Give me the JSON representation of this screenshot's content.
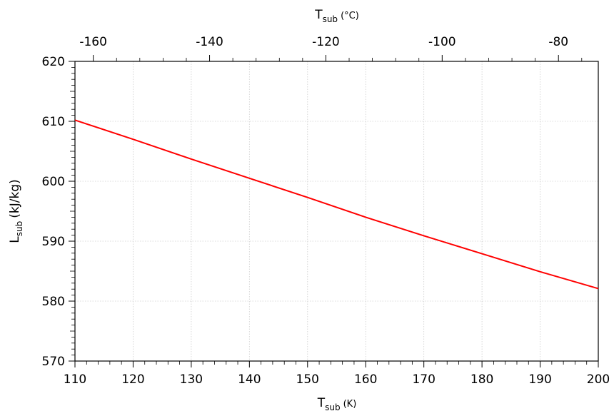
{
  "chart_data": {
    "type": "line",
    "xlabel": {
      "main": "T",
      "sub": "sub",
      "unit": "(K)"
    },
    "x2label": {
      "main": "T",
      "sub": "sub",
      "unit": "(°C)"
    },
    "ylabel": {
      "main": "L",
      "sub": "sub",
      "unit": "(kJ/kg)"
    },
    "xlim": [
      110,
      200
    ],
    "ylim": [
      570,
      620
    ],
    "x_ticks": [
      110,
      120,
      130,
      140,
      150,
      160,
      170,
      180,
      190,
      200
    ],
    "y_ticks": [
      570,
      580,
      590,
      600,
      610,
      620
    ],
    "x2_ticks": [
      -160,
      -140,
      -120,
      -100,
      -80
    ],
    "x2_offset": 273.15,
    "grid": true,
    "line_color": "#ff0000",
    "series": [
      {
        "x": [
          110,
          120,
          130,
          140,
          150,
          160,
          170,
          180,
          190,
          200
        ],
        "y": [
          610.2,
          607.0,
          603.7,
          600.5,
          597.3,
          594.0,
          590.9,
          587.9,
          584.9,
          582.1
        ]
      }
    ]
  }
}
